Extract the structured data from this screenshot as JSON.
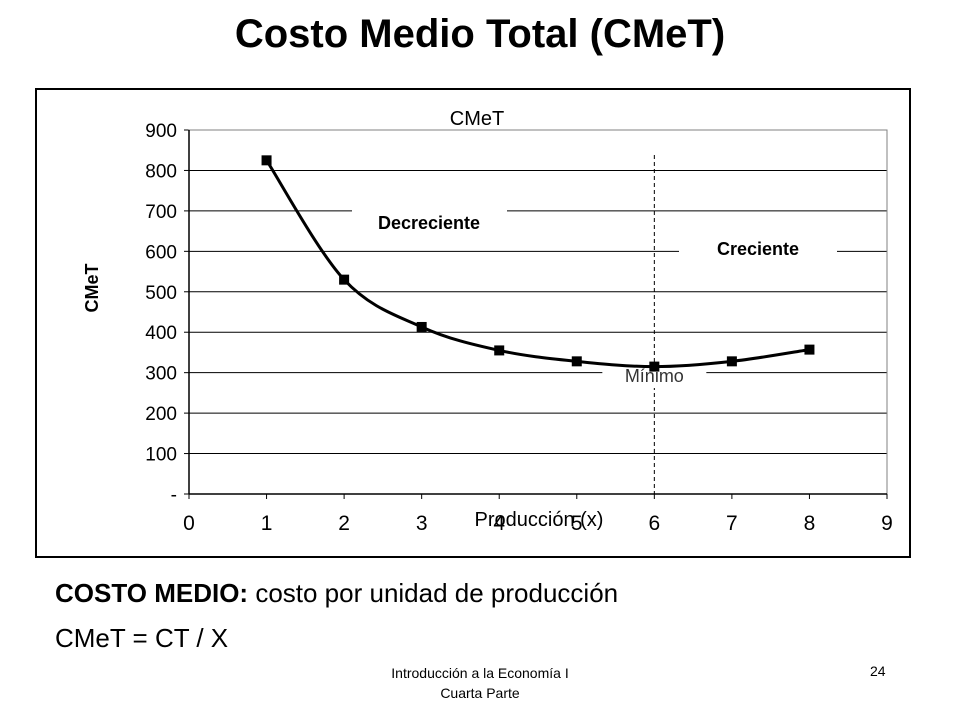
{
  "slide": {
    "title": "Costo Medio Total (CMeT)",
    "definition_bold": "COSTO MEDIO:",
    "definition_text": " costo por unidad de producción",
    "formula": "CMeT = CT / X",
    "footer_line1": "Introducción a la Economía I",
    "footer_line2": "Cuarta Parte",
    "page_number": "24"
  },
  "chart_data": {
    "type": "line",
    "title": "CMeT",
    "xlabel": "Producción (x)",
    "ylabel": "CMeT",
    "xlim": [
      0,
      9
    ],
    "ylim": [
      0,
      900
    ],
    "x_ticks": [
      "0",
      "1",
      "2",
      "3",
      "4",
      "5",
      "6",
      "7",
      "8",
      "9"
    ],
    "y_ticks": [
      "-",
      "100",
      "200",
      "300",
      "400",
      "500",
      "600",
      "700",
      "800",
      "900"
    ],
    "grid": "horizontal",
    "series": [
      {
        "marker": "square",
        "color": "#000000",
        "x": [
          1,
          2,
          3,
          4,
          5,
          6,
          7,
          8
        ],
        "y": [
          825,
          530,
          413,
          355,
          328,
          315,
          328,
          357
        ]
      }
    ],
    "annotations": {
      "min_line_x": 6,
      "min_label": "Mínimo",
      "decreasing_label": "Decreciente",
      "increasing_label": "Creciente"
    }
  }
}
